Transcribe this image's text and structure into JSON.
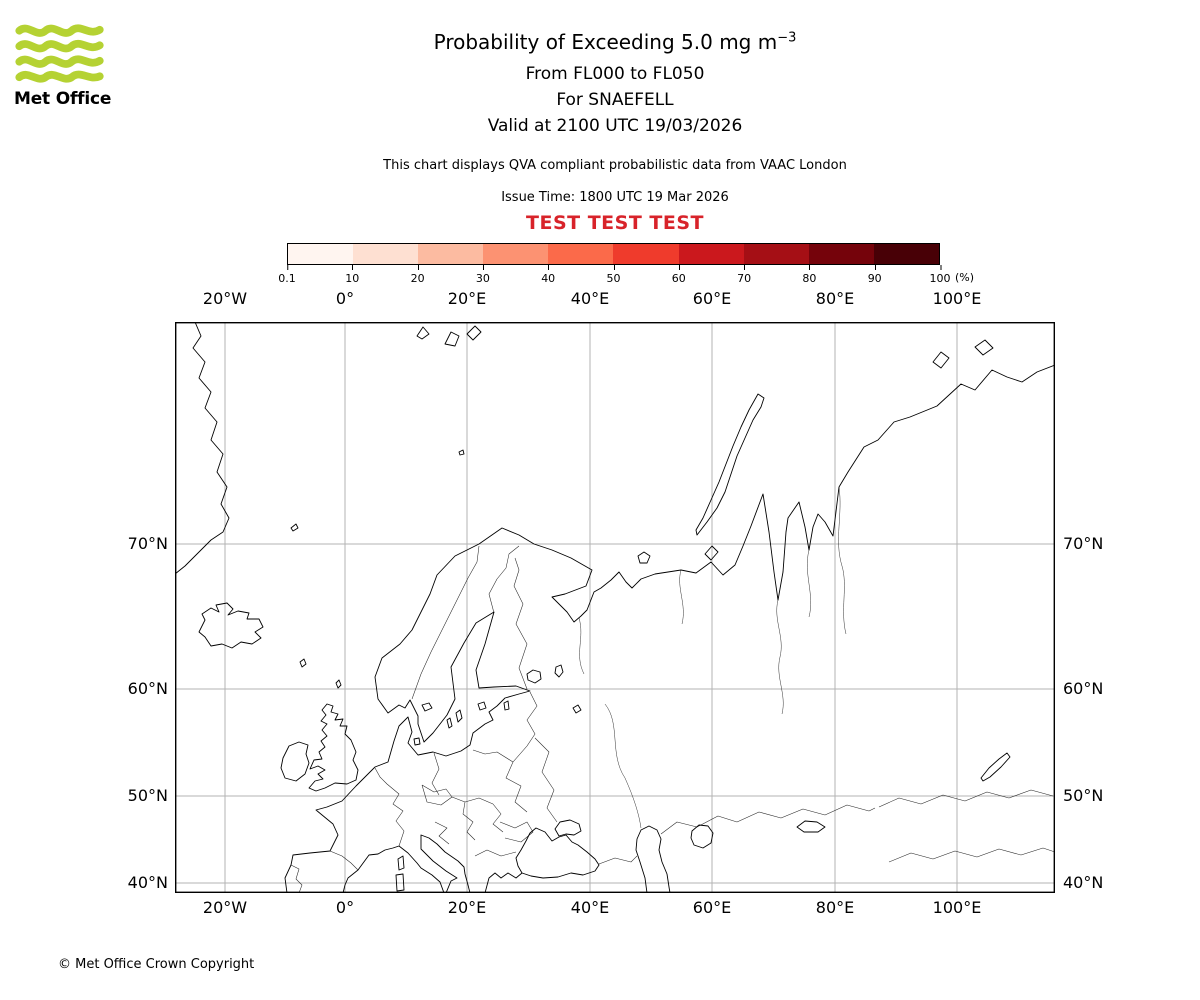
{
  "branding": {
    "logo_text": "Met Office"
  },
  "header": {
    "title_main": "Probability of Exceeding 5.0 mg m",
    "title_superscript": "−3",
    "subtitle_flight_levels": "From FL000 to FL050",
    "subtitle_volcano": "For SNAEFELL",
    "subtitle_valid_time": "Valid at 2100 UTC 19/03/2026",
    "note": "This chart displays QVA compliant probabilistic data from VAAC London",
    "issue_time": "Issue Time: 1800 UTC 19 Mar 2026",
    "test_banner": "TEST TEST TEST"
  },
  "colorbar": {
    "tick_labels": [
      "0.1",
      "10",
      "20",
      "30",
      "40",
      "50",
      "60",
      "70",
      "80",
      "90",
      "100"
    ],
    "unit": "(%)",
    "colors": [
      "#fff5f0",
      "#fee0d2",
      "#fcbba1",
      "#fc9272",
      "#fb6a4a",
      "#ef3b2c",
      "#cb181d",
      "#a50f15",
      "#75030b",
      "#480006"
    ]
  },
  "axes": {
    "longitude_labels": [
      "20°W",
      "0°",
      "20°E",
      "40°E",
      "60°E",
      "80°E",
      "100°E"
    ],
    "latitude_labels": [
      "70°N",
      "60°N",
      "50°N",
      "40°N"
    ]
  },
  "footer": {
    "copyright": "© Met Office Crown Copyright"
  },
  "colors": {
    "test_red": "#d8232a",
    "logo_green": "#b5d233",
    "grid_gray": "#b3b3b3"
  }
}
